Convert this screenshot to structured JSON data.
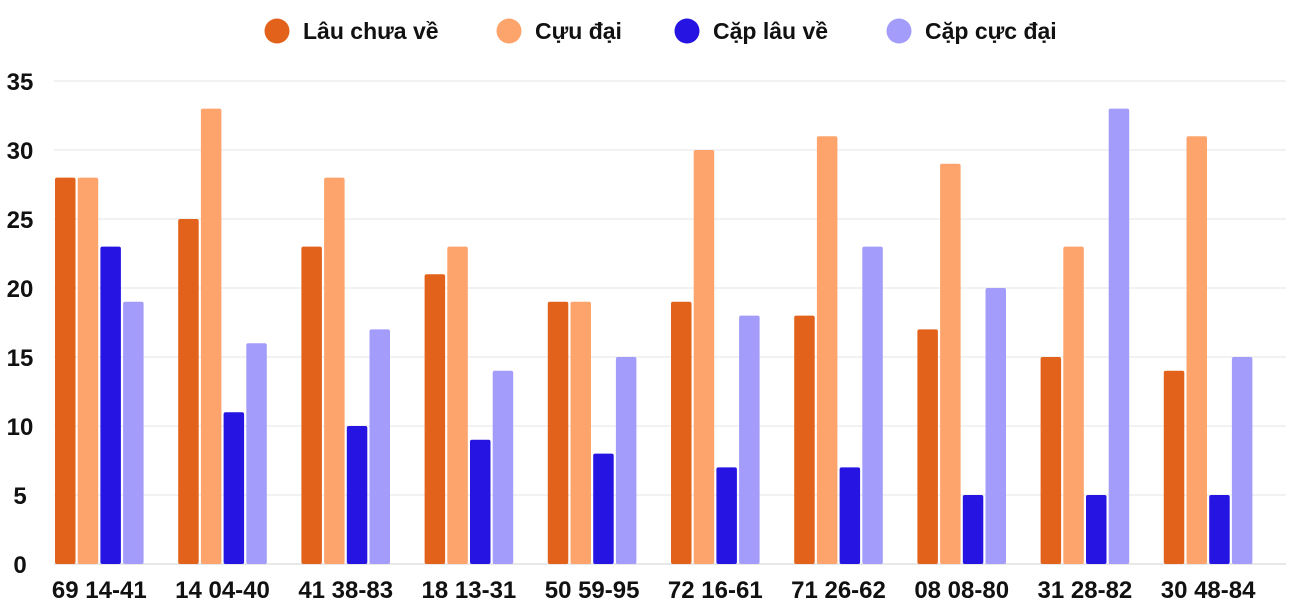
{
  "chart_data": {
    "type": "bar",
    "title": "",
    "xlabel": "",
    "ylabel": "",
    "categories": [
      "69 14-41",
      "14 04-40",
      "41 38-83",
      "18 13-31",
      "50 59-95",
      "72 16-61",
      "71 26-62",
      "08 08-80",
      "31 28-82",
      "30 48-84"
    ],
    "ylim": [
      0,
      35
    ],
    "yticks": [
      "0",
      "5",
      "10",
      "15",
      "20",
      "25",
      "30",
      "35"
    ],
    "grid": true,
    "legend_position": "top-center",
    "series": [
      {
        "name": "Lâu chưa về",
        "color": "#e2621b",
        "values": [
          28,
          25,
          23,
          21,
          19,
          19,
          18,
          17,
          15,
          14
        ]
      },
      {
        "name": "Cựu đại",
        "color": "#fda46c",
        "values": [
          28,
          33,
          28,
          23,
          19,
          30,
          31,
          29,
          23,
          31
        ]
      },
      {
        "name": "Cặp lâu về",
        "color": "#2514e2",
        "values": [
          23,
          11,
          10,
          9,
          8,
          7,
          7,
          5,
          5,
          5
        ]
      },
      {
        "name": "Cặp cực đại",
        "color": "#a39cfa",
        "values": [
          19,
          16,
          17,
          14,
          15,
          18,
          23,
          20,
          33,
          15
        ]
      }
    ]
  }
}
